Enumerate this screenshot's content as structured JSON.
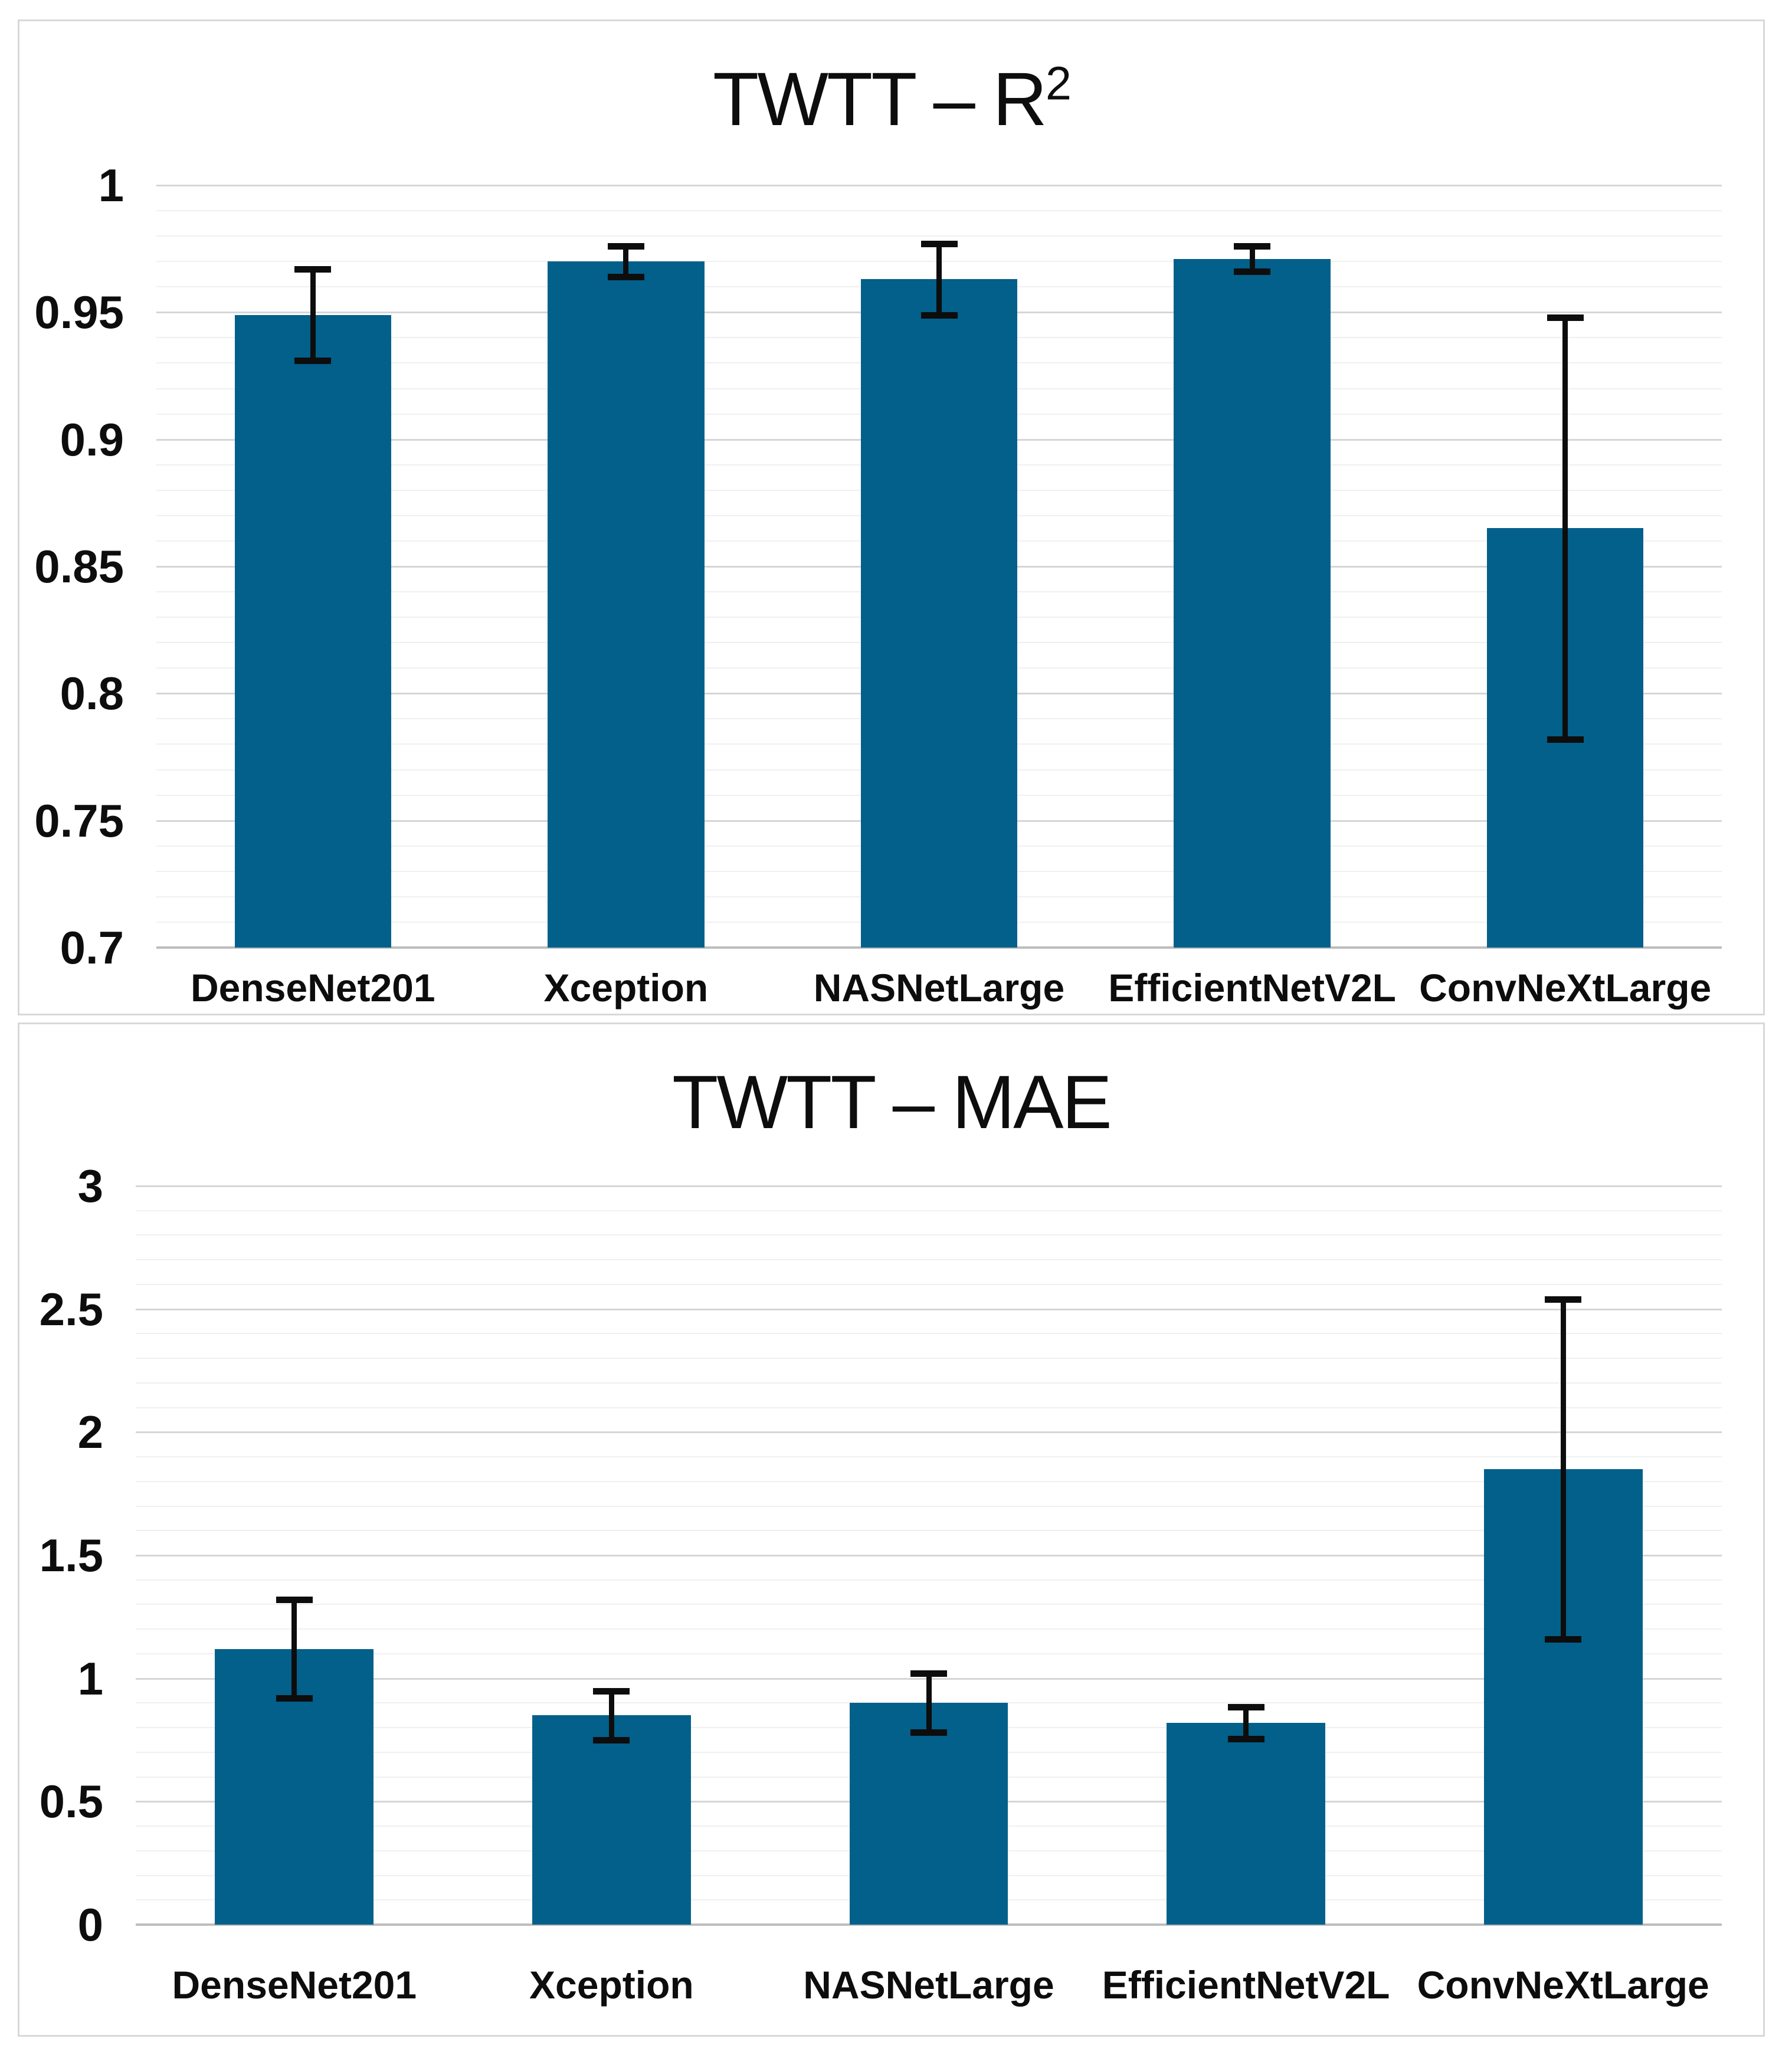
{
  "page": {
    "background": "#ffffff",
    "panel_border_color": "#d8d8d8",
    "text_color": "#0d0d0d"
  },
  "chart_data": [
    {
      "type": "bar",
      "title_main": "TWTT – R",
      "title_sup": "2",
      "categories": [
        "DenseNet201",
        "Xception",
        "NASNetLarge",
        "EfficientNetV2L",
        "ConvNeXtLarge"
      ],
      "values": [
        0.949,
        0.97,
        0.963,
        0.971,
        0.865
      ],
      "err_plus": [
        0.018,
        0.006,
        0.014,
        0.005,
        0.083
      ],
      "err_minus": [
        0.018,
        0.006,
        0.014,
        0.005,
        0.083
      ],
      "ylim": [
        0.7,
        1.0
      ],
      "ytick_step": 0.05,
      "minor_step": 0.01,
      "ytick_labels": [
        "1",
        "0.95",
        "0.9",
        "0.85",
        "0.8",
        "0.75",
        "0.7"
      ],
      "xlabel": "",
      "ylabel": "",
      "grid": true,
      "legend": "none",
      "bar_color": "#02608a",
      "error_bar_color": "#0d0d0d"
    },
    {
      "type": "bar",
      "title_main": "TWTT – MAE",
      "title_sup": "",
      "categories": [
        "DenseNet201",
        "Xception",
        "NASNetLarge",
        "EfficientNetV2L",
        "ConvNeXtLarge"
      ],
      "values": [
        1.12,
        0.85,
        0.9,
        0.82,
        1.85
      ],
      "err_plus": [
        0.2,
        0.1,
        0.12,
        0.065,
        0.69
      ],
      "err_minus": [
        0.2,
        0.1,
        0.12,
        0.065,
        0.69
      ],
      "ylim": [
        0,
        3
      ],
      "ytick_step": 0.5,
      "minor_step": 0.1,
      "ytick_labels": [
        "3",
        "2.5",
        "2",
        "1.5",
        "1",
        "0.5",
        "0"
      ],
      "xlabel": "",
      "ylabel": "",
      "grid": true,
      "legend": "none",
      "bar_color": "#02608a",
      "error_bar_color": "#0d0d0d"
    }
  ]
}
